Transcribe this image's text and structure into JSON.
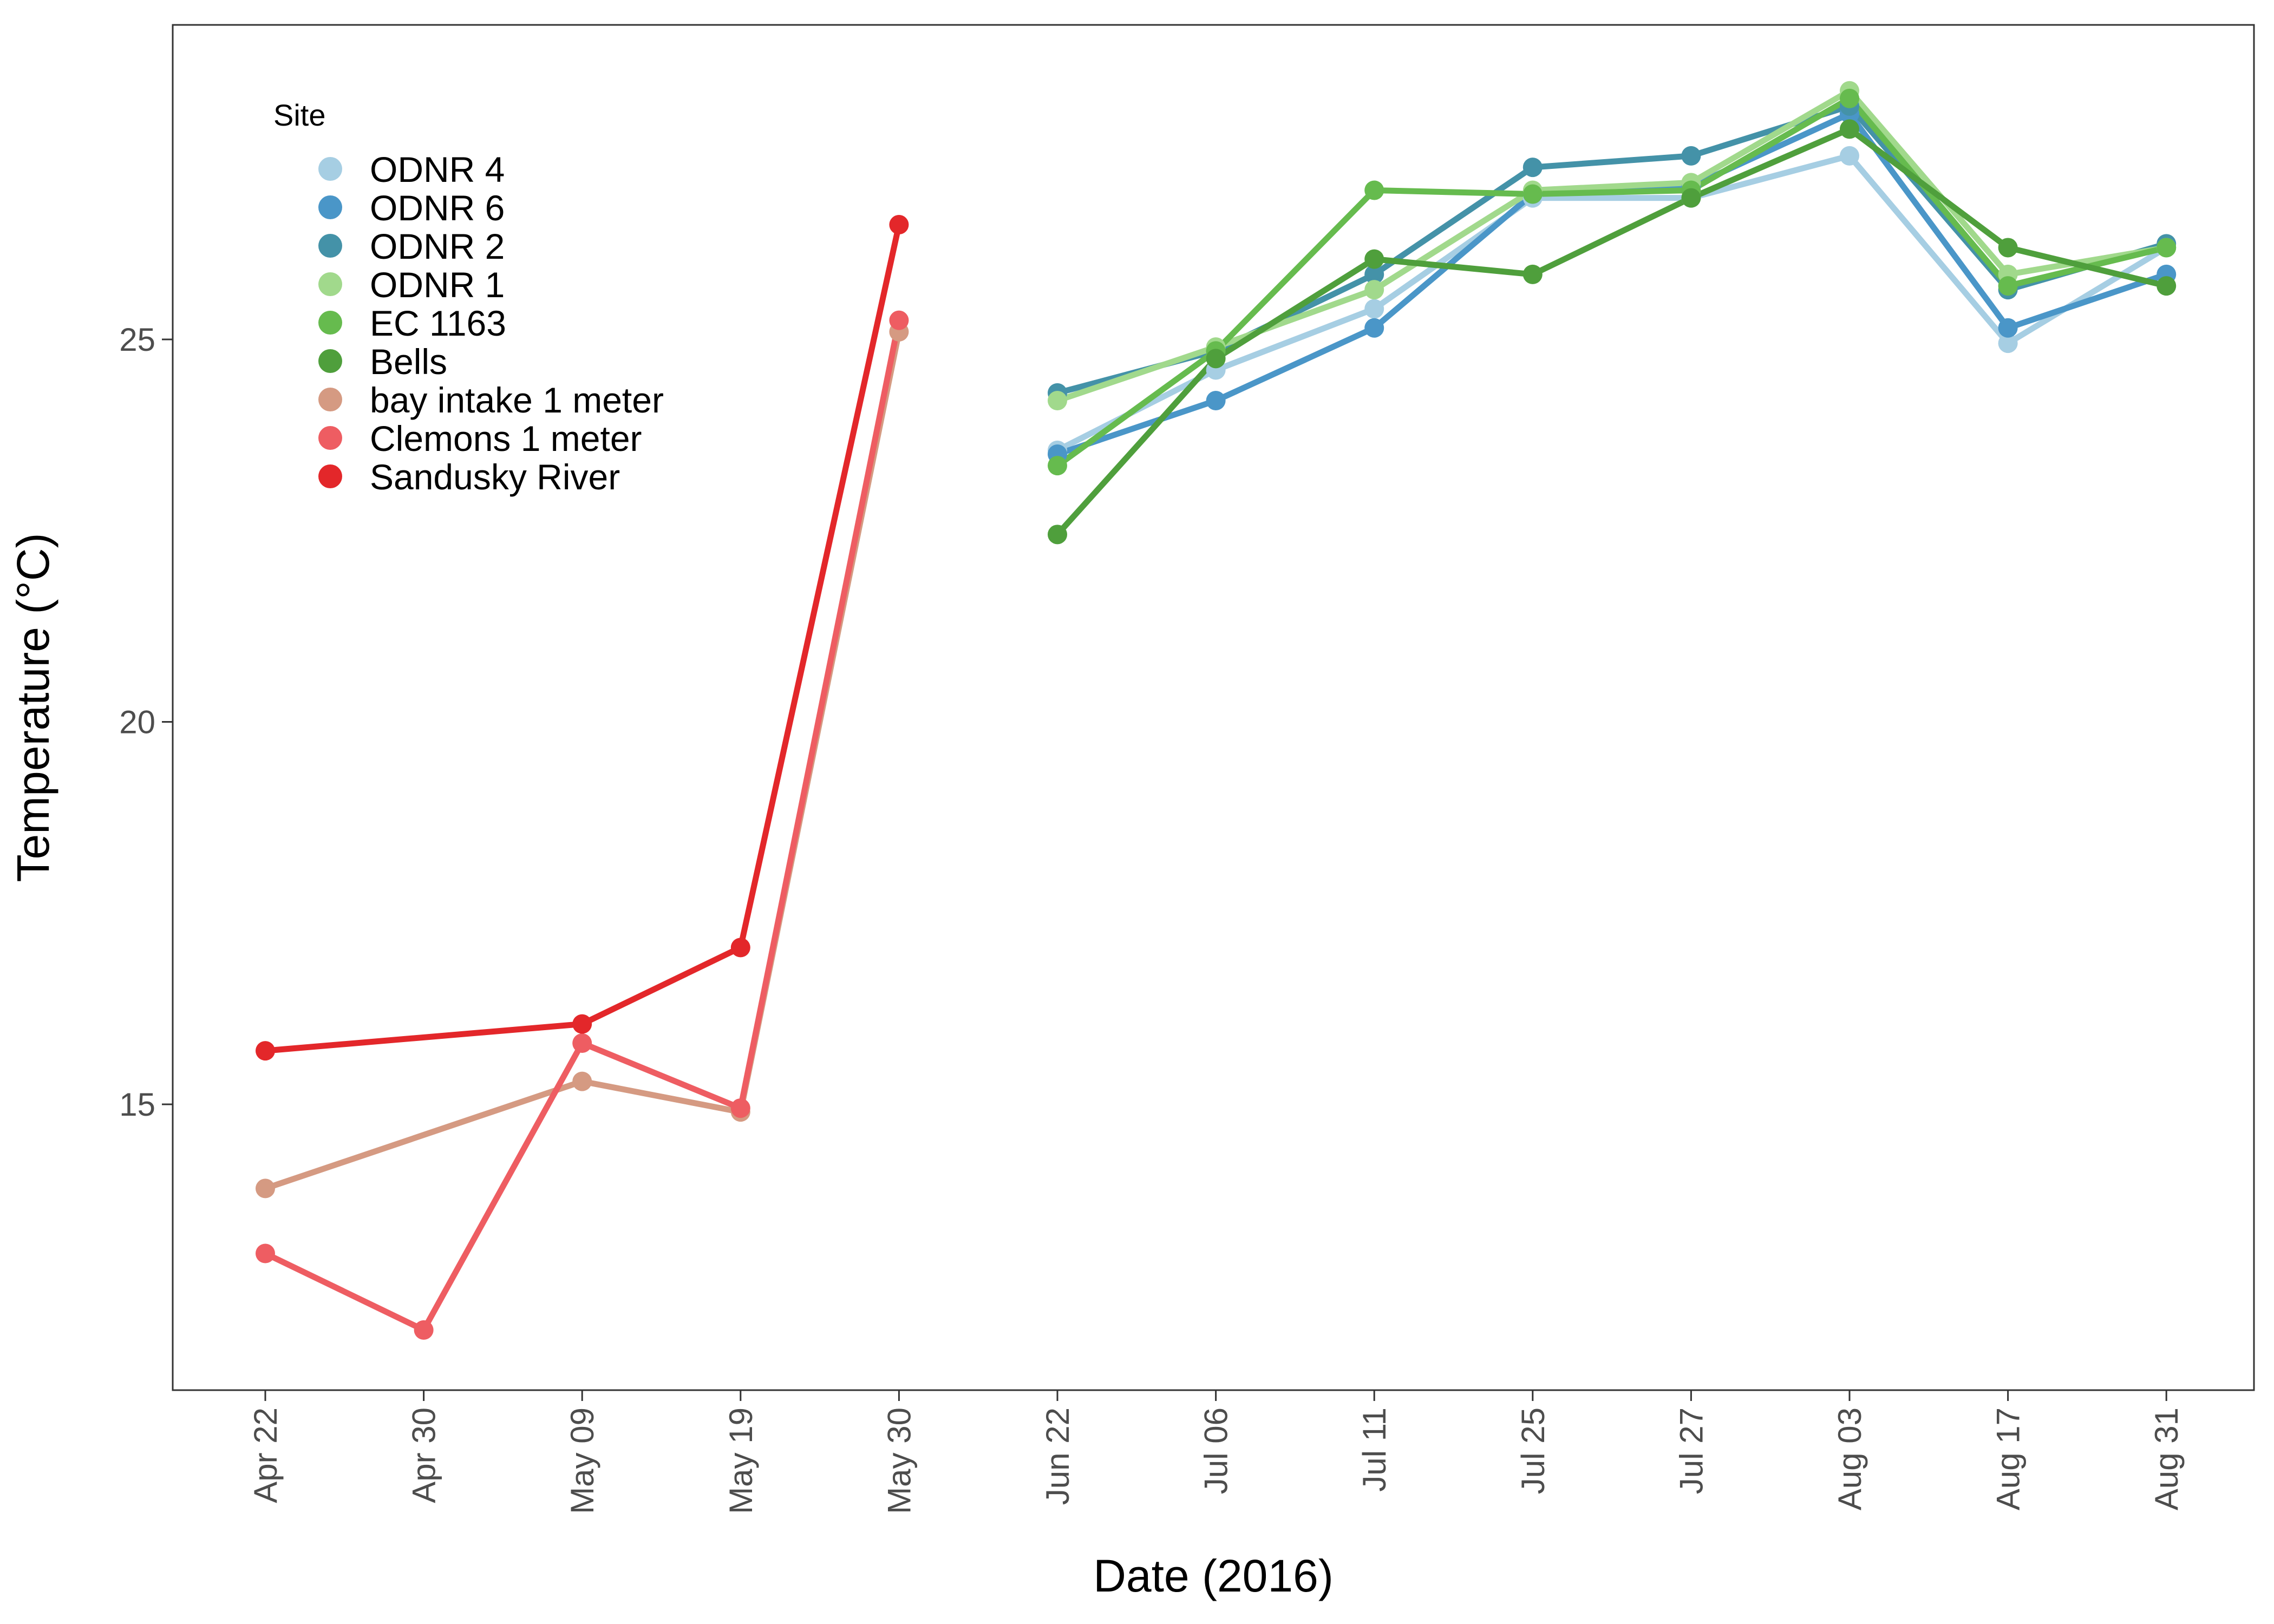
{
  "chart_data": {
    "type": "line",
    "xlabel": "Date (2016)",
    "ylabel": "Temperature (°C)",
    "categories": [
      "Apr 22",
      "Apr 30",
      "May 09",
      "May 19",
      "May 30",
      "Jun 22",
      "Jul 06",
      "Jul 11",
      "Jul 25",
      "Jul 27",
      "Aug 03",
      "Aug 17",
      "Aug 31"
    ],
    "ylim": [
      11.25,
      29.05
    ],
    "yticks": [
      15,
      20,
      25
    ],
    "grid": false,
    "legend": {
      "title": "Site",
      "position": "top-left"
    },
    "series": [
      {
        "name": "ODNR 4",
        "color": "#A6CEE3",
        "values": [
          null,
          null,
          null,
          null,
          null,
          23.55,
          24.6,
          25.4,
          26.85,
          26.85,
          27.4,
          24.95,
          26.2
        ]
      },
      {
        "name": "ODNR 6",
        "color": "#4A96C8",
        "values": [
          null,
          null,
          null,
          null,
          null,
          23.5,
          24.2,
          25.15,
          26.9,
          27.0,
          27.95,
          25.15,
          25.85
        ]
      },
      {
        "name": "ODNR 2",
        "color": "#4492A8",
        "values": [
          null,
          null,
          null,
          null,
          null,
          24.3,
          24.85,
          25.85,
          27.25,
          27.4,
          28.05,
          25.65,
          26.25
        ]
      },
      {
        "name": "ODNR 1",
        "color": "#A1D98C",
        "values": [
          null,
          null,
          null,
          null,
          null,
          24.2,
          24.9,
          25.65,
          26.95,
          27.05,
          28.25,
          25.85,
          26.2
        ]
      },
      {
        "name": "EC 1163",
        "color": "#66BB4E",
        "values": [
          null,
          null,
          null,
          null,
          null,
          23.35,
          24.85,
          26.95,
          26.9,
          26.95,
          28.15,
          25.7,
          26.2
        ]
      },
      {
        "name": "Bells",
        "color": "#4F9F3C",
        "values": [
          null,
          null,
          null,
          null,
          null,
          22.45,
          24.75,
          26.05,
          25.85,
          26.85,
          27.75,
          26.2,
          25.7
        ]
      },
      {
        "name": "bay intake 1 meter",
        "color": "#D59A82",
        "values": [
          13.9,
          null,
          15.3,
          14.9,
          25.1,
          null,
          null,
          null,
          null,
          null,
          null,
          null,
          null
        ]
      },
      {
        "name": "Clemons 1 meter",
        "color": "#EE5D62",
        "values": [
          13.05,
          12.05,
          15.8,
          14.95,
          25.25,
          null,
          null,
          null,
          null,
          null,
          null,
          null,
          null
        ]
      },
      {
        "name": "Sandusky River",
        "color": "#E3272A",
        "values": [
          15.7,
          null,
          16.05,
          17.05,
          26.5,
          null,
          null,
          null,
          null,
          null,
          null,
          null,
          null
        ]
      }
    ]
  }
}
